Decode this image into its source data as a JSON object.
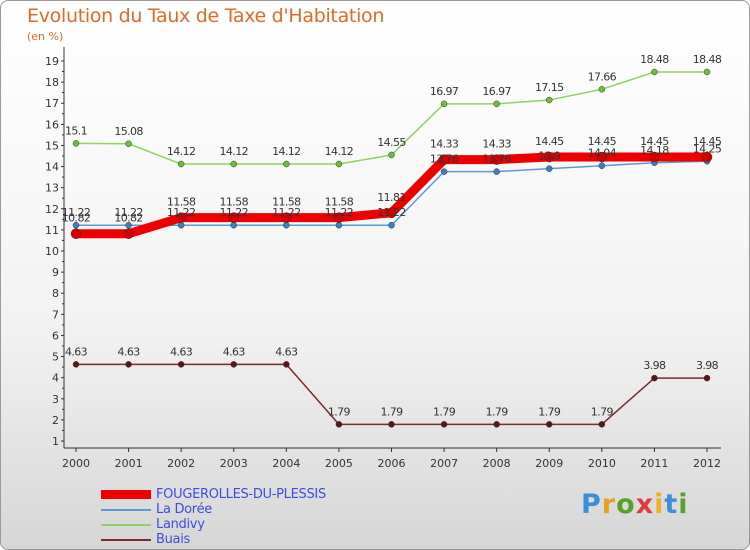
{
  "header": {
    "title": "Evolution du Taux de Taxe d'Habitation",
    "subtitle": "(en %)"
  },
  "brand": {
    "letters": [
      "P",
      "r",
      "o",
      "x",
      "i",
      "t",
      "i"
    ],
    "colors": [
      "#3a8fd9",
      "#e8a020",
      "#5aa02c",
      "#e03a3a",
      "#f0b020",
      "#3a8fd9",
      "#5aa02c"
    ]
  },
  "chart_data": {
    "type": "line",
    "title": "Evolution du Taux de Taxe d'Habitation",
    "ylabel": "(en %)",
    "xlabel": "",
    "ylim": [
      1,
      19
    ],
    "grid": false,
    "legend_position": "bottom-left",
    "x": [
      "2000",
      "2001",
      "2002",
      "2003",
      "2004",
      "2005",
      "2006",
      "2007",
      "2008",
      "2009",
      "2010",
      "2011",
      "2012"
    ],
    "y_ticks": [
      "1",
      "2",
      "3",
      "4",
      "5",
      "6",
      "7",
      "8",
      "9",
      "10",
      "11",
      "12",
      "13",
      "14",
      "15",
      "16",
      "17",
      "18",
      "19"
    ],
    "series": [
      {
        "name": "FOUGEROLLES-DU-PLESSIS",
        "color": "#ee0000",
        "values": [
          10.82,
          10.82,
          11.58,
          11.58,
          11.58,
          11.58,
          11.81,
          14.33,
          14.33,
          14.45,
          14.45,
          14.45,
          14.45
        ],
        "labels": [
          "10.82",
          "10.82",
          "11.58",
          "11.58",
          "11.58",
          "11.58",
          "11.81",
          "14.33",
          "14.33",
          "14.45",
          "14.45",
          "14.45",
          "14.45"
        ]
      },
      {
        "name": "La Dorée",
        "color": "#5b9bd5",
        "values": [
          11.22,
          11.22,
          11.22,
          11.22,
          11.22,
          11.22,
          11.22,
          13.76,
          13.76,
          13.9,
          14.04,
          14.18,
          14.25
        ],
        "labels": [
          "11.22",
          "11.22",
          "11.22",
          "11.22",
          "11.22",
          "11.22",
          "11.22",
          "13.76",
          "13.76",
          "13.9",
          "14.04",
          "14.18",
          "14.25"
        ]
      },
      {
        "name": "Landivy",
        "color": "#8cd264",
        "values": [
          15.1,
          15.08,
          14.12,
          14.12,
          14.12,
          14.12,
          14.55,
          16.97,
          16.97,
          17.15,
          17.66,
          18.48,
          18.48
        ],
        "labels": [
          "15.1",
          "15.08",
          "14.12",
          "14.12",
          "14.12",
          "14.12",
          "14.55",
          "16.97",
          "16.97",
          "17.15",
          "17.66",
          "18.48",
          "18.48"
        ]
      },
      {
        "name": "Buais",
        "color": "#7a2a2a",
        "values": [
          4.63,
          4.63,
          4.63,
          4.63,
          4.63,
          1.79,
          1.79,
          1.79,
          1.79,
          1.79,
          1.79,
          3.98,
          3.98
        ],
        "labels": [
          "4.63",
          "4.63",
          "4.63",
          "4.63",
          "4.63",
          "1.79",
          "1.79",
          "1.79",
          "1.79",
          "1.79",
          "1.79",
          "3.98",
          "3.98"
        ]
      }
    ]
  }
}
